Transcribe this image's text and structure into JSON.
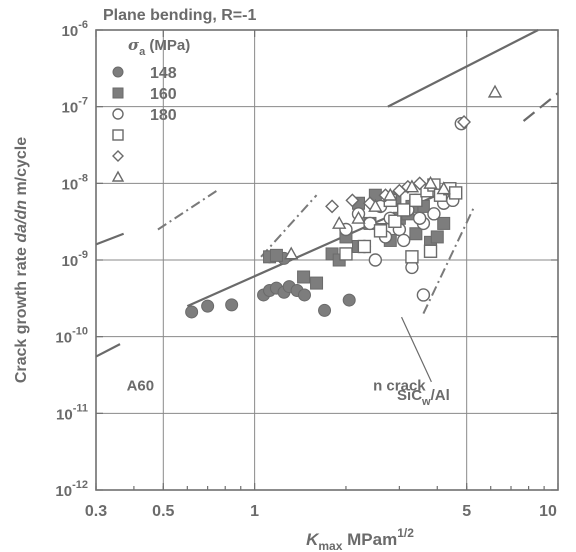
{
  "chart_data": {
    "type": "scatter",
    "title": "Plane bending, R=-1",
    "xlabel": "K_max MPam^1/2",
    "ylabel": "Crack growth rate da/dn m/cycle",
    "xscale": "log",
    "yscale": "log",
    "xlim": [
      0.3,
      10
    ],
    "ylim": [
      1e-12,
      1e-06
    ],
    "xticks": [
      {
        "value": 0.3,
        "label": "0.3"
      },
      {
        "value": 0.5,
        "label": "0.5"
      },
      {
        "value": 1,
        "label": "1"
      },
      {
        "value": 5,
        "label": "5"
      },
      {
        "value": 10,
        "label": "10"
      }
    ],
    "yticks": [
      {
        "value": 1e-06,
        "base": "10",
        "exp": "-6"
      },
      {
        "value": 1e-07,
        "base": "10",
        "exp": "-7"
      },
      {
        "value": 1e-08,
        "base": "10",
        "exp": "-8"
      },
      {
        "value": 1e-09,
        "base": "10",
        "exp": "-9"
      },
      {
        "value": 1e-10,
        "base": "10",
        "exp": "-10"
      },
      {
        "value": 1e-11,
        "base": "10",
        "exp": "-11"
      },
      {
        "value": 1e-12,
        "base": "10",
        "exp": "-12"
      }
    ],
    "grid": true,
    "legend_placement": "top-left",
    "legend_title": "σa (MPa)",
    "legend": [
      {
        "marker": "filled-circle",
        "label": "148"
      },
      {
        "marker": "filled-square",
        "label": "160"
      },
      {
        "marker": "open-circle",
        "label": "180"
      },
      {
        "marker": "open-square",
        "label": ""
      },
      {
        "marker": "open-diamond",
        "label": ""
      },
      {
        "marker": "open-triangle",
        "label": ""
      }
    ],
    "annotations": [
      {
        "text": "SiCw/Al",
        "x": 3.6,
        "y": 1.5e-11
      },
      {
        "text": "A60",
        "x": 0.42,
        "y": 2e-11
      },
      {
        "text": "n crack",
        "x": 3.0,
        "y": 2e-11
      }
    ],
    "series": [
      {
        "name": "148",
        "marker": "filled-circle",
        "x": [
          0.62,
          0.7,
          0.84,
          1.07,
          1.12,
          1.18,
          1.25,
          1.3,
          1.38,
          1.46,
          1.12,
          1.25,
          1.7,
          2.05
        ],
        "y": [
          2.1e-10,
          2.5e-10,
          2.6e-10,
          3.5e-10,
          4e-10,
          4.3e-10,
          3.8e-10,
          4.5e-10,
          4e-10,
          3.5e-10,
          1.1e-09,
          1.05e-09,
          2.2e-10,
          3e-10
        ]
      },
      {
        "name": "160",
        "marker": "filled-square",
        "x": [
          1.12,
          1.18,
          1.45,
          1.6,
          1.8,
          2.0,
          2.2,
          2.4,
          2.6,
          2.8,
          3.0,
          3.2,
          3.4,
          3.6,
          3.8,
          4.0,
          4.2,
          2.2,
          2.5,
          2.9,
          3.3,
          3.7,
          1.9
        ],
        "y": [
          1.1e-09,
          1.15e-09,
          6e-10,
          5e-10,
          1.2e-09,
          2e-09,
          1.5e-09,
          3e-09,
          2.5e-09,
          1.8e-09,
          3.5e-09,
          4e-09,
          2.2e-09,
          5e-09,
          1.7e-09,
          2e-09,
          3e-09,
          5.5e-09,
          7e-09,
          6.5e-09,
          5e-09,
          8e-09,
          1e-09
        ]
      },
      {
        "name": "180",
        "marker": "open-circle",
        "x": [
          2.0,
          2.2,
          2.4,
          2.6,
          2.8,
          3.0,
          3.2,
          3.4,
          3.6,
          2.3,
          2.7,
          3.1,
          3.5,
          3.9,
          4.2,
          4.5,
          2.5,
          3.3,
          3.6,
          4.8
        ],
        "y": [
          2.5e-09,
          4e-09,
          3e-09,
          5e-09,
          3.5e-09,
          2.5e-09,
          4.5e-09,
          6e-09,
          3e-09,
          1.5e-09,
          2e-09,
          1.8e-09,
          3.5e-09,
          4e-09,
          5.5e-09,
          6e-09,
          1e-09,
          8e-10,
          3.5e-10,
          6e-08
        ]
      },
      {
        "name": "",
        "marker": "open-square",
        "x": [
          2.0,
          2.3,
          2.6,
          2.9,
          3.1,
          3.4,
          3.7,
          3.9,
          4.1,
          4.4,
          4.6,
          3.3,
          3.8,
          2.8
        ],
        "y": [
          1.2e-09,
          1.5e-09,
          2.4e-09,
          3.2e-09,
          4.5e-09,
          6e-09,
          8e-09,
          9.5e-09,
          7e-09,
          8.5e-09,
          7.5e-09,
          1.1e-09,
          1.3e-09,
          6e-09
        ]
      },
      {
        "name": "",
        "marker": "open-diamond",
        "x": [
          1.8,
          2.1,
          2.4,
          2.7,
          3.0,
          3.2,
          3.5,
          4.9
        ],
        "y": [
          5e-09,
          6e-09,
          5.5e-09,
          7e-09,
          8e-09,
          9e-09,
          1e-08,
          6.3e-08
        ]
      },
      {
        "name": "",
        "marker": "open-triangle",
        "x": [
          1.32,
          1.9,
          2.2,
          2.5,
          2.8,
          3.3,
          3.8,
          4.2,
          6.2
        ],
        "y": [
          1.2e-09,
          3e-09,
          3.5e-09,
          5e-09,
          7e-09,
          9e-09,
          1e-08,
          8.5e-09,
          1.55e-07
        ]
      }
    ],
    "reference_lines": [
      {
        "style": "solid",
        "x": [
          2.75,
          8.6
        ],
        "y": [
          1e-07,
          1e-06
        ]
      },
      {
        "style": "dash",
        "x": [
          7.7,
          10
        ],
        "y": [
          6.5e-08,
          1.5e-07
        ]
      },
      {
        "style": "solid",
        "x": [
          0.6,
          4.6
        ],
        "y": [
          2.5e-10,
          9e-09
        ]
      },
      {
        "style": "dashdot",
        "x": [
          3.6,
          5.3
        ],
        "y": [
          2e-10,
          5e-09
        ]
      },
      {
        "style": "dashdot",
        "x": [
          1.05,
          1.6
        ],
        "y": [
          1.1e-09,
          7e-09
        ]
      },
      {
        "style": "dashdot",
        "x": [
          0.48,
          0.75
        ],
        "y": [
          2.5e-09,
          8e-09
        ]
      },
      {
        "style": "solid",
        "x": [
          0.3,
          0.37
        ],
        "y": [
          1.6e-09,
          2.2e-09
        ]
      },
      {
        "style": "solid",
        "x": [
          0.3,
          0.36
        ],
        "y": [
          5.5e-11,
          8e-11
        ]
      }
    ]
  }
}
